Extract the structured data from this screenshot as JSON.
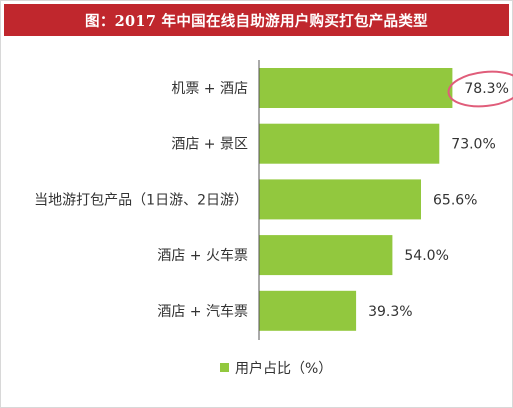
{
  "title": "图：2017 年中国在线自助游用户购买打包产品类型",
  "chart_data": {
    "type": "bar",
    "orientation": "horizontal",
    "categories": [
      "机票 + 酒店",
      "酒店 + 景区",
      "当地游打包产品（1日游、2日游）",
      "酒店 + 火车票",
      "酒店 + 汽车票"
    ],
    "series": [
      {
        "name": "用户占比（%）",
        "values": [
          78.3,
          73.0,
          65.6,
          54.0,
          39.3
        ]
      }
    ],
    "value_labels": [
      "78.3%",
      "73.0%",
      "65.6%",
      "54.0%",
      "39.3%"
    ],
    "xlim": [
      0,
      100
    ],
    "grid": false,
    "legend": "bottom",
    "highlighted_category": "机票 + 酒店"
  },
  "colors": {
    "title_bg": "#c0272d",
    "bar": "#92c83e",
    "highlight_ring": "#e05d7a",
    "axis": "#555555"
  }
}
